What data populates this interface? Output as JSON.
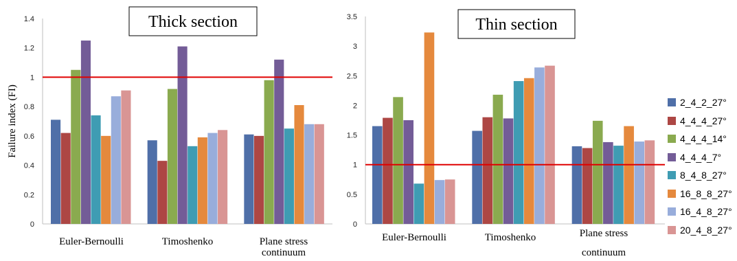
{
  "chart_data": [
    {
      "type": "bar",
      "title": "Thick section",
      "ylabel": "Failure index (FI)",
      "xlabel": "",
      "ylim": [
        0,
        1.4
      ],
      "yticks": [
        "0",
        "0.2",
        "0.4",
        "0.6",
        "0.8",
        "1",
        "1.2",
        "1.4"
      ],
      "categories": [
        "Euler-Bernoulli",
        "Timoshenko",
        "Plane stress continuum"
      ],
      "reference_line": {
        "y": 1,
        "color": "#e00000"
      },
      "series": [
        {
          "name": "2_4_2_27°",
          "values": [
            0.71,
            0.57,
            0.61
          ]
        },
        {
          "name": "4_4_4_27°",
          "values": [
            0.62,
            0.43,
            0.6
          ]
        },
        {
          "name": "4_4_4_14°",
          "values": [
            1.05,
            0.92,
            0.98
          ]
        },
        {
          "name": "4_4_4_7°",
          "values": [
            1.25,
            1.21,
            1.12
          ]
        },
        {
          "name": "8_4_8_27°",
          "values": [
            0.74,
            0.53,
            0.65
          ]
        },
        {
          "name": "16_8_8_27°",
          "values": [
            0.6,
            0.59,
            0.81
          ]
        },
        {
          "name": "16_4_8_27°",
          "values": [
            0.87,
            0.62,
            0.68
          ]
        },
        {
          "name": "20_4_8_27°",
          "values": [
            0.91,
            0.64,
            0.68
          ]
        }
      ]
    },
    {
      "type": "bar",
      "title": "Thin section",
      "ylabel": "",
      "xlabel": "",
      "ylim": [
        0,
        3.5
      ],
      "yticks": [
        "0",
        "0.5",
        "1",
        "1.5",
        "2",
        "2.5",
        "3",
        "3.5"
      ],
      "categories": [
        "Euler-Bernoulli",
        "Timoshenko",
        "Plane stress continuum"
      ],
      "reference_line": {
        "y": 1,
        "color": "#e00000"
      },
      "series": [
        {
          "name": "2_4_2_27°",
          "values": [
            1.65,
            1.57,
            1.31
          ]
        },
        {
          "name": "4_4_4_27°",
          "values": [
            1.79,
            1.8,
            1.28
          ]
        },
        {
          "name": "4_4_4_14°",
          "values": [
            2.14,
            2.18,
            1.74
          ]
        },
        {
          "name": "4_4_4_7°",
          "values": [
            1.75,
            1.78,
            1.38
          ]
        },
        {
          "name": "8_4_8_27°",
          "values": [
            0.68,
            2.41,
            1.32
          ]
        },
        {
          "name": "16_8_8_27°",
          "values": [
            3.23,
            2.46,
            1.65
          ]
        },
        {
          "name": "16_4_8_27°",
          "values": [
            0.74,
            2.64,
            1.39
          ]
        },
        {
          "name": "20_4_8_27°",
          "values": [
            0.75,
            2.67,
            1.41
          ]
        }
      ]
    }
  ],
  "colors": [
    "#4f6fa8",
    "#ad4744",
    "#8aaa4f",
    "#735c97",
    "#3f9cb3",
    "#e5893d",
    "#98addb",
    "#d99594"
  ],
  "legend": [
    "2_4_2_27°",
    "4_4_4_27°",
    "4_4_4_14°",
    "4_4_4_7°",
    "8_4_8_27°",
    "16_8_8_27°",
    "16_4_8_27°",
    "20_4_8_27°"
  ]
}
